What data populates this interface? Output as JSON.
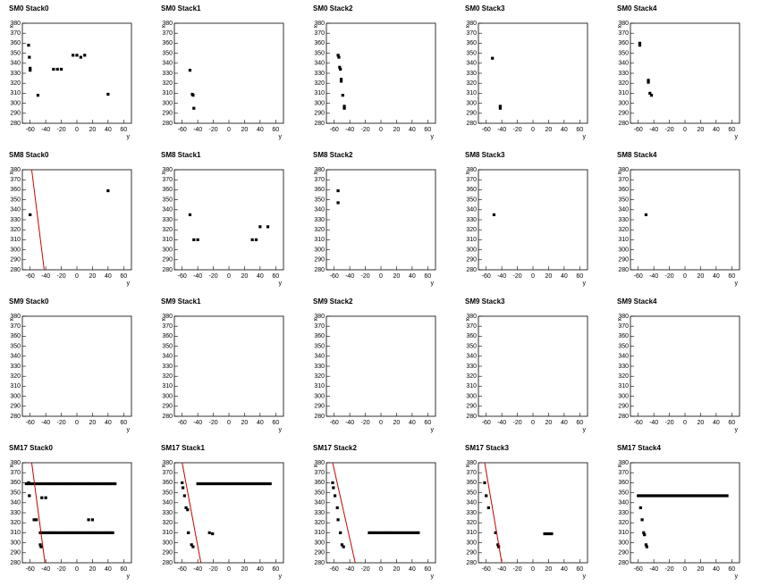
{
  "chart_data": [
    {
      "type": "scatter",
      "title": "SM0 Stack0",
      "x_label": "y",
      "y_label": "x",
      "xlim": [
        -70,
        70
      ],
      "ylim": [
        280,
        380
      ],
      "xticks": [
        -60,
        -40,
        -20,
        0,
        20,
        40,
        60
      ],
      "yticks": [
        280,
        290,
        300,
        310,
        320,
        330,
        340,
        350,
        360,
        370,
        380
      ],
      "color": "#000000",
      "x": [
        -62,
        -61,
        -60,
        -60,
        -50,
        -30,
        -25,
        -20,
        -5,
        0,
        5,
        10,
        40
      ],
      "values": [
        358,
        346,
        335,
        333,
        308,
        334,
        334,
        334,
        348,
        348,
        346,
        348,
        309
      ]
    },
    {
      "type": "scatter",
      "title": "SM0 Stack1",
      "x_label": "y",
      "y_label": "x",
      "xlim": [
        -70,
        70
      ],
      "ylim": [
        280,
        380
      ],
      "xticks": [
        -60,
        -40,
        -20,
        0,
        20,
        40,
        60
      ],
      "yticks": [
        280,
        290,
        300,
        310,
        320,
        330,
        340,
        350,
        360,
        370,
        380
      ],
      "color": "#000000",
      "x": [
        -50,
        -47,
        -46,
        -45
      ],
      "values": [
        333,
        309,
        308,
        295
      ]
    },
    {
      "type": "scatter",
      "title": "SM0 Stack2",
      "x_label": "y",
      "y_label": "x",
      "xlim": [
        -70,
        70
      ],
      "ylim": [
        280,
        380
      ],
      "xticks": [
        -60,
        -40,
        -20,
        0,
        20,
        40,
        60
      ],
      "yticks": [
        280,
        290,
        300,
        310,
        320,
        330,
        340,
        350,
        360,
        370,
        380
      ],
      "color": "#000000",
      "x": [
        -55,
        -54,
        -53,
        -52,
        -51,
        -51,
        -49,
        -47,
        -47
      ],
      "values": [
        348,
        346,
        336,
        334,
        324,
        322,
        308,
        297,
        295
      ]
    },
    {
      "type": "scatter",
      "title": "SM0 Stack3",
      "x_label": "y",
      "y_label": "x",
      "xlim": [
        -70,
        70
      ],
      "ylim": [
        280,
        380
      ],
      "xticks": [
        -60,
        -40,
        -20,
        0,
        20,
        40,
        60
      ],
      "yticks": [
        280,
        290,
        300,
        310,
        320,
        330,
        340,
        350,
        360,
        370,
        380
      ],
      "color": "#000000",
      "x": [
        -52,
        -42,
        -42
      ],
      "values": [
        345,
        297,
        295
      ]
    },
    {
      "type": "scatter",
      "title": "SM0 Stack4",
      "x_label": "y",
      "y_label": "x",
      "xlim": [
        -70,
        70
      ],
      "ylim": [
        280,
        380
      ],
      "xticks": [
        -60,
        -40,
        -20,
        0,
        20,
        40,
        60
      ],
      "yticks": [
        280,
        290,
        300,
        310,
        320,
        330,
        340,
        350,
        360,
        370,
        380
      ],
      "color": "#000000",
      "x": [
        -58,
        -58,
        -47,
        -47,
        -45,
        -43
      ],
      "values": [
        360,
        358,
        323,
        321,
        310,
        308
      ]
    },
    {
      "type": "scatter",
      "title": "SM8 Stack0",
      "x_label": "y",
      "y_label": "x",
      "xlim": [
        -70,
        70
      ],
      "ylim": [
        280,
        380
      ],
      "xticks": [
        -60,
        -40,
        -20,
        0,
        20,
        40,
        60
      ],
      "yticks": [
        280,
        290,
        300,
        310,
        320,
        330,
        340,
        350,
        360,
        370,
        380
      ],
      "color": "#000000",
      "x": [
        -60,
        40
      ],
      "values": [
        335,
        359
      ],
      "fit": {
        "color": "#cc0000",
        "x": [
          -58,
          -42
        ],
        "values": [
          380,
          280
        ]
      }
    },
    {
      "type": "scatter",
      "title": "SM8 Stack1",
      "x_label": "y",
      "y_label": "x",
      "xlim": [
        -70,
        70
      ],
      "ylim": [
        280,
        380
      ],
      "xticks": [
        -60,
        -40,
        -20,
        0,
        20,
        40,
        60
      ],
      "yticks": [
        280,
        290,
        300,
        310,
        320,
        330,
        340,
        350,
        360,
        370,
        380
      ],
      "color": "#000000",
      "x": [
        -50,
        -45,
        -40,
        30,
        35,
        40,
        50
      ],
      "values": [
        335,
        310,
        310,
        310,
        310,
        323,
        323
      ]
    },
    {
      "type": "scatter",
      "title": "SM8 Stack2",
      "x_label": "y",
      "y_label": "x",
      "xlim": [
        -70,
        70
      ],
      "ylim": [
        280,
        380
      ],
      "xticks": [
        -60,
        -40,
        -20,
        0,
        20,
        40,
        60
      ],
      "yticks": [
        280,
        290,
        300,
        310,
        320,
        330,
        340,
        350,
        360,
        370,
        380
      ],
      "color": "#000000",
      "x": [
        -55,
        -55
      ],
      "values": [
        359,
        347
      ]
    },
    {
      "type": "scatter",
      "title": "SM8 Stack3",
      "x_label": "y",
      "y_label": "x",
      "xlim": [
        -70,
        70
      ],
      "ylim": [
        280,
        380
      ],
      "xticks": [
        -60,
        -40,
        -20,
        0,
        20,
        40,
        60
      ],
      "yticks": [
        280,
        290,
        300,
        310,
        320,
        330,
        340,
        350,
        360,
        370,
        380
      ],
      "color": "#000000",
      "x": [
        -50
      ],
      "values": [
        335
      ]
    },
    {
      "type": "scatter",
      "title": "SM8 Stack4",
      "x_label": "y",
      "y_label": "x",
      "xlim": [
        -70,
        70
      ],
      "ylim": [
        280,
        380
      ],
      "xticks": [
        -60,
        -40,
        -20,
        0,
        20,
        40,
        60
      ],
      "yticks": [
        280,
        290,
        300,
        310,
        320,
        330,
        340,
        350,
        360,
        370,
        380
      ],
      "color": "#000000",
      "x": [
        -50
      ],
      "values": [
        335
      ]
    },
    {
      "type": "scatter",
      "title": "SM9 Stack0",
      "x_label": "y",
      "y_label": "x",
      "xlim": [
        -70,
        70
      ],
      "ylim": [
        280,
        380
      ],
      "xticks": [
        -60,
        -40,
        -20,
        0,
        20,
        40,
        60
      ],
      "yticks": [
        280,
        290,
        300,
        310,
        320,
        330,
        340,
        350,
        360,
        370,
        380
      ],
      "color": "#000000",
      "x": [],
      "values": []
    },
    {
      "type": "scatter",
      "title": "SM9 Stack1",
      "x_label": "y",
      "y_label": "x",
      "xlim": [
        -70,
        70
      ],
      "ylim": [
        280,
        380
      ],
      "xticks": [
        -60,
        -40,
        -20,
        0,
        20,
        40,
        60
      ],
      "yticks": [
        280,
        290,
        300,
        310,
        320,
        330,
        340,
        350,
        360,
        370,
        380
      ],
      "color": "#000000",
      "x": [],
      "values": []
    },
    {
      "type": "scatter",
      "title": "SM9 Stack2",
      "x_label": "y",
      "y_label": "x",
      "xlim": [
        -70,
        70
      ],
      "ylim": [
        280,
        380
      ],
      "xticks": [
        -60,
        -40,
        -20,
        0,
        20,
        40,
        60
      ],
      "yticks": [
        280,
        290,
        300,
        310,
        320,
        330,
        340,
        350,
        360,
        370,
        380
      ],
      "color": "#000000",
      "x": [],
      "values": []
    },
    {
      "type": "scatter",
      "title": "SM9 Stack3",
      "x_label": "y",
      "y_label": "x",
      "xlim": [
        -70,
        70
      ],
      "ylim": [
        280,
        380
      ],
      "xticks": [
        -60,
        -40,
        -20,
        0,
        20,
        40,
        60
      ],
      "yticks": [
        280,
        290,
        300,
        310,
        320,
        330,
        340,
        350,
        360,
        370,
        380
      ],
      "color": "#000000",
      "x": [],
      "values": []
    },
    {
      "type": "scatter",
      "title": "SM9 Stack4",
      "x_label": "y",
      "y_label": "x",
      "xlim": [
        -70,
        70
      ],
      "ylim": [
        280,
        380
      ],
      "xticks": [
        -60,
        -40,
        -20,
        0,
        20,
        40,
        60
      ],
      "yticks": [
        280,
        290,
        300,
        310,
        320,
        330,
        340,
        350,
        360,
        370,
        380
      ],
      "color": "#000000",
      "x": [],
      "values": []
    },
    {
      "type": "scatter",
      "title": "SM17 Stack0",
      "x_label": "y",
      "y_label": "x",
      "xlim": [
        -70,
        70
      ],
      "ylim": [
        280,
        380
      ],
      "xticks": [
        -60,
        -40,
        -20,
        0,
        20,
        40,
        60
      ],
      "yticks": [
        280,
        290,
        300,
        310,
        320,
        330,
        340,
        350,
        360,
        370,
        380
      ],
      "color": "#000000",
      "x": [
        -65,
        -62,
        -59,
        -56,
        -53,
        -50,
        -47,
        -44,
        -41,
        -38,
        -35,
        -32,
        -29,
        -26,
        -23,
        -20,
        -17,
        -14,
        -11,
        -8,
        -5,
        -2,
        1,
        4,
        7,
        10,
        13,
        16,
        19,
        22,
        25,
        28,
        31,
        34,
        37,
        40,
        43,
        46,
        49,
        -47,
        -44,
        -41,
        -38,
        -35,
        -32,
        -29,
        -26,
        -23,
        -20,
        -17,
        -14,
        -11,
        -8,
        -5,
        -2,
        1,
        4,
        7,
        10,
        13,
        16,
        19,
        22,
        25,
        28,
        31,
        34,
        37,
        40,
        43,
        46,
        -62,
        -61,
        -45,
        -40,
        -55,
        -52,
        15,
        20,
        -47,
        -46
      ],
      "values": [
        359,
        359,
        359,
        359,
        359,
        359,
        359,
        359,
        359,
        359,
        359,
        359,
        359,
        359,
        359,
        359,
        359,
        359,
        359,
        359,
        359,
        359,
        359,
        359,
        359,
        359,
        359,
        359,
        359,
        359,
        359,
        359,
        359,
        359,
        359,
        359,
        359,
        359,
        359,
        310,
        310,
        310,
        310,
        310,
        310,
        310,
        310,
        310,
        310,
        310,
        310,
        310,
        310,
        310,
        310,
        310,
        310,
        310,
        310,
        310,
        310,
        310,
        310,
        310,
        310,
        310,
        310,
        310,
        310,
        310,
        310,
        360,
        347,
        345,
        345,
        323,
        323,
        323,
        323,
        298,
        296
      ],
      "fit": {
        "color": "#cc0000",
        "x": [
          -58,
          -41
        ],
        "values": [
          380,
          280
        ]
      }
    },
    {
      "type": "scatter",
      "title": "SM17 Stack1",
      "x_label": "y",
      "y_label": "x",
      "xlim": [
        -70,
        70
      ],
      "ylim": [
        280,
        380
      ],
      "xticks": [
        -60,
        -40,
        -20,
        0,
        20,
        40,
        60
      ],
      "yticks": [
        280,
        290,
        300,
        310,
        320,
        330,
        340,
        350,
        360,
        370,
        380
      ],
      "color": "#000000",
      "x": [
        -40,
        -37,
        -34,
        -31,
        -28,
        -25,
        -22,
        -19,
        -16,
        -13,
        -10,
        -7,
        -4,
        -1,
        2,
        5,
        8,
        11,
        14,
        17,
        20,
        23,
        26,
        29,
        32,
        35,
        38,
        41,
        44,
        47,
        50,
        53,
        -60,
        -59,
        -57,
        -55,
        -53,
        -52,
        -48,
        -46,
        -25,
        -21
      ],
      "values": [
        359,
        359,
        359,
        359,
        359,
        359,
        359,
        359,
        359,
        359,
        359,
        359,
        359,
        359,
        359,
        359,
        359,
        359,
        359,
        359,
        359,
        359,
        359,
        359,
        359,
        359,
        359,
        359,
        359,
        359,
        359,
        359,
        360,
        355,
        347,
        335,
        333,
        310,
        298,
        296,
        310,
        309
      ],
      "fit": {
        "color": "#cc0000",
        "x": [
          -60,
          -36
        ],
        "values": [
          380,
          280
        ]
      }
    },
    {
      "type": "scatter",
      "title": "SM17 Stack2",
      "x_label": "y",
      "y_label": "x",
      "xlim": [
        -70,
        70
      ],
      "ylim": [
        280,
        380
      ],
      "xticks": [
        -60,
        -40,
        -20,
        0,
        20,
        40,
        60
      ],
      "yticks": [
        280,
        290,
        300,
        310,
        320,
        330,
        340,
        350,
        360,
        370,
        380
      ],
      "color": "#000000",
      "x": [
        -15,
        -12,
        -9,
        -6,
        -3,
        0,
        3,
        6,
        9,
        12,
        15,
        18,
        21,
        24,
        27,
        30,
        33,
        36,
        39,
        42,
        45,
        48,
        -62,
        -61,
        -59,
        -56,
        -55,
        -52,
        -50,
        -48
      ],
      "values": [
        310,
        310,
        310,
        310,
        310,
        310,
        310,
        310,
        310,
        310,
        310,
        310,
        310,
        310,
        310,
        310,
        310,
        310,
        310,
        310,
        310,
        310,
        360,
        355,
        347,
        335,
        323,
        310,
        298,
        296
      ],
      "fit": {
        "color": "#cc0000",
        "x": [
          -62,
          -33
        ],
        "values": [
          380,
          280
        ]
      }
    },
    {
      "type": "scatter",
      "title": "SM17 Stack3",
      "x_label": "y",
      "y_label": "x",
      "xlim": [
        -70,
        70
      ],
      "ylim": [
        280,
        380
      ],
      "xticks": [
        -60,
        -40,
        -20,
        0,
        20,
        40,
        60
      ],
      "yticks": [
        280,
        290,
        300,
        310,
        320,
        330,
        340,
        350,
        360,
        370,
        380
      ],
      "color": "#000000",
      "x": [
        15,
        18,
        21,
        24,
        -62,
        -60,
        -57,
        -48,
        -45,
        -44
      ],
      "values": [
        309,
        309,
        309,
        309,
        360,
        347,
        335,
        310,
        298,
        296
      ],
      "fit": {
        "color": "#cc0000",
        "x": [
          -62,
          -40
        ],
        "values": [
          380,
          280
        ]
      }
    },
    {
      "type": "scatter",
      "title": "SM17 Stack4",
      "x_label": "y",
      "y_label": "x",
      "xlim": [
        -70,
        70
      ],
      "ylim": [
        280,
        380
      ],
      "xticks": [
        -60,
        -40,
        -20,
        0,
        20,
        40,
        60
      ],
      "yticks": [
        280,
        290,
        300,
        310,
        320,
        330,
        340,
        350,
        360,
        370,
        380
      ],
      "color": "#000000",
      "x": [
        -60,
        -57,
        -54,
        -51,
        -48,
        -45,
        -42,
        -39,
        -36,
        -33,
        -30,
        -27,
        -24,
        -21,
        -18,
        -15,
        -12,
        -9,
        -6,
        -3,
        0,
        3,
        6,
        9,
        12,
        15,
        18,
        21,
        24,
        27,
        30,
        33,
        36,
        39,
        42,
        45,
        48,
        51,
        54,
        -57,
        -55,
        -53,
        -52,
        -50,
        -49
      ],
      "values": [
        347,
        347,
        347,
        347,
        347,
        347,
        347,
        347,
        347,
        347,
        347,
        347,
        347,
        347,
        347,
        347,
        347,
        347,
        347,
        347,
        347,
        347,
        347,
        347,
        347,
        347,
        347,
        347,
        347,
        347,
        347,
        347,
        347,
        347,
        347,
        347,
        347,
        347,
        347,
        335,
        323,
        310,
        308,
        298,
        296
      ]
    }
  ]
}
